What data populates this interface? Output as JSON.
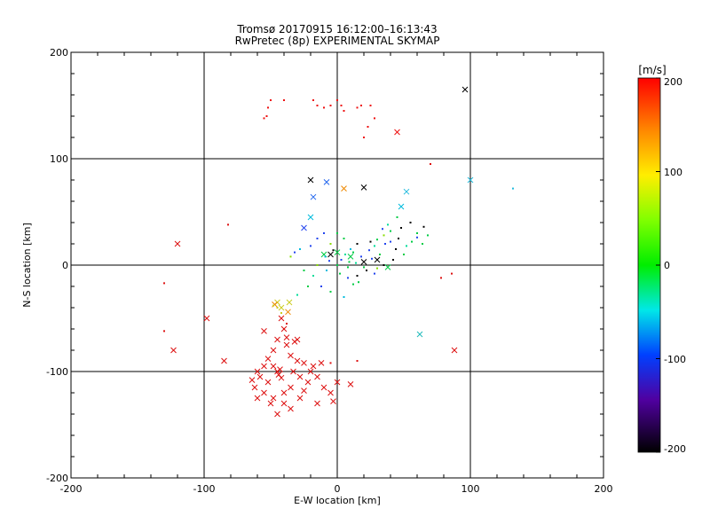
{
  "chart_data": {
    "type": "scatter",
    "title": "Tromsø 20170915 16:12:00–16:13:43",
    "subtitle": "RwPretec (8p) EXPERIMENTAL SKYMAP",
    "xlabel": "E-W location [km]",
    "ylabel": "N-S location [km]",
    "xlim": [
      -200,
      200
    ],
    "ylim": [
      -200,
      200
    ],
    "xticks": [
      "-200",
      "-100",
      "0",
      "100",
      "200"
    ],
    "yticks": [
      "-200",
      "-100",
      "0",
      "100",
      "200"
    ],
    "grid": true,
    "colorbar": {
      "label": "[m/s]",
      "range": [
        -200,
        200
      ],
      "ticks": [
        "200",
        "100",
        "0",
        "-100",
        "-200"
      ]
    },
    "series": [
      {
        "marker": "x",
        "points": [
          [
            -20,
            80
          ],
          [
            -8,
            78
          ],
          [
            5,
            72
          ],
          [
            20,
            73
          ],
          [
            48,
            55
          ],
          [
            52,
            69
          ],
          [
            100,
            80
          ],
          [
            96,
            165
          ],
          [
            45,
            125
          ],
          [
            -120,
            20
          ],
          [
            -123,
            -80
          ],
          [
            -98,
            -50
          ],
          [
            -85,
            -90
          ],
          [
            -45,
            -35
          ],
          [
            -42,
            -40
          ],
          [
            -36,
            -35
          ],
          [
            -37,
            -44
          ],
          [
            -47,
            -37
          ],
          [
            -20,
            45
          ],
          [
            -25,
            35
          ],
          [
            -18,
            64
          ],
          [
            62,
            -65
          ],
          [
            88,
            -80
          ],
          [
            -5,
            10
          ],
          [
            0,
            12
          ],
          [
            10,
            8
          ],
          [
            20,
            3
          ],
          [
            30,
            5
          ],
          [
            38,
            -2
          ],
          [
            -10,
            10
          ],
          [
            -42,
            -50
          ],
          [
            -40,
            -60
          ],
          [
            -45,
            -70
          ],
          [
            -38,
            -75
          ],
          [
            -35,
            -85
          ],
          [
            -48,
            -80
          ],
          [
            -55,
            -95
          ],
          [
            -52,
            -110
          ],
          [
            -45,
            -100
          ],
          [
            -44,
            -103
          ],
          [
            -42,
            -106
          ],
          [
            -43,
            -98
          ],
          [
            -58,
            -105
          ],
          [
            -62,
            -115
          ],
          [
            -60,
            -125
          ],
          [
            -55,
            -120
          ],
          [
            -48,
            -125
          ],
          [
            -40,
            -130
          ],
          [
            -35,
            -135
          ],
          [
            -28,
            -125
          ],
          [
            -25,
            -118
          ],
          [
            -22,
            -110
          ],
          [
            -15,
            -105
          ],
          [
            -10,
            -115
          ],
          [
            -5,
            -120
          ],
          [
            -3,
            -128
          ],
          [
            -55,
            -62
          ],
          [
            -48,
            -95
          ],
          [
            -30,
            -90
          ],
          [
            -25,
            -92
          ],
          [
            -18,
            -95
          ],
          [
            -12,
            -92
          ],
          [
            -30,
            -70
          ],
          [
            -33,
            -100
          ],
          [
            -40,
            -120
          ],
          [
            -50,
            -130
          ],
          [
            -45,
            -140
          ],
          [
            -35,
            -115
          ],
          [
            -28,
            -105
          ],
          [
            -20,
            -100
          ],
          [
            -38,
            -68
          ],
          [
            -32,
            -72
          ],
          [
            0,
            -110
          ],
          [
            10,
            -112
          ],
          [
            -15,
            -130
          ],
          [
            -60,
            -100
          ],
          [
            -64,
            -108
          ],
          [
            -52,
            -88
          ]
        ]
      },
      {
        "marker": "dot",
        "points": [
          [
            -50,
            155
          ],
          [
            -52,
            148
          ],
          [
            -53,
            140
          ],
          [
            -55,
            138
          ],
          [
            -40,
            155
          ],
          [
            -18,
            155
          ],
          [
            -15,
            150
          ],
          [
            -10,
            148
          ],
          [
            -5,
            150
          ],
          [
            0,
            155
          ],
          [
            3,
            150
          ],
          [
            5,
            145
          ],
          [
            15,
            148
          ],
          [
            18,
            150
          ],
          [
            25,
            150
          ],
          [
            28,
            138
          ],
          [
            23,
            130
          ],
          [
            20,
            120
          ],
          [
            132,
            72
          ],
          [
            -130,
            -62
          ],
          [
            -130,
            -17
          ],
          [
            -82,
            38
          ],
          [
            78,
            -12
          ],
          [
            86,
            -8
          ],
          [
            70,
            95
          ],
          [
            -5,
            20
          ],
          [
            5,
            25
          ],
          [
            10,
            15
          ],
          [
            15,
            20
          ],
          [
            25,
            22
          ],
          [
            35,
            28
          ],
          [
            40,
            32
          ],
          [
            48,
            35
          ],
          [
            55,
            40
          ],
          [
            60,
            30
          ],
          [
            -15,
            0
          ],
          [
            -8,
            -5
          ],
          [
            2,
            -8
          ],
          [
            8,
            -2
          ],
          [
            15,
            -10
          ],
          [
            22,
            -5
          ],
          [
            30,
            -3
          ],
          [
            42,
            5
          ],
          [
            50,
            10
          ],
          [
            -12,
            -20
          ],
          [
            -5,
            -25
          ],
          [
            5,
            -30
          ],
          [
            12,
            -18
          ],
          [
            -20,
            18
          ],
          [
            -28,
            15
          ],
          [
            -32,
            12
          ],
          [
            -35,
            8
          ],
          [
            -25,
            -5
          ],
          [
            0,
            0
          ],
          [
            3,
            5
          ],
          [
            6,
            10
          ],
          [
            9,
            3
          ],
          [
            12,
            12
          ],
          [
            18,
            8
          ],
          [
            24,
            14
          ],
          [
            28,
            18
          ],
          [
            32,
            10
          ],
          [
            36,
            20
          ],
          [
            40,
            22
          ],
          [
            44,
            15
          ],
          [
            46,
            25
          ],
          [
            52,
            18
          ],
          [
            56,
            22
          ],
          [
            60,
            26
          ],
          [
            64,
            20
          ],
          [
            -3,
            14
          ],
          [
            -6,
            4
          ],
          [
            -9,
            8
          ],
          [
            14,
            2
          ],
          [
            20,
            -2
          ],
          [
            26,
            6
          ],
          [
            30,
            24
          ],
          [
            34,
            34
          ],
          [
            38,
            38
          ],
          [
            45,
            45
          ],
          [
            -10,
            30
          ],
          [
            -15,
            25
          ],
          [
            0,
            30
          ],
          [
            8,
            -12
          ],
          [
            16,
            -16
          ],
          [
            -18,
            -10
          ],
          [
            -22,
            -20
          ],
          [
            -30,
            -28
          ],
          [
            28,
            -8
          ],
          [
            35,
            0
          ],
          [
            65,
            36
          ],
          [
            68,
            28
          ],
          [
            -40,
            -60
          ],
          [
            -38,
            -55
          ],
          [
            -45,
            -40
          ],
          [
            -42,
            -45
          ],
          [
            -48,
            -38
          ],
          [
            15,
            -90
          ],
          [
            -5,
            -92
          ]
        ]
      }
    ]
  }
}
